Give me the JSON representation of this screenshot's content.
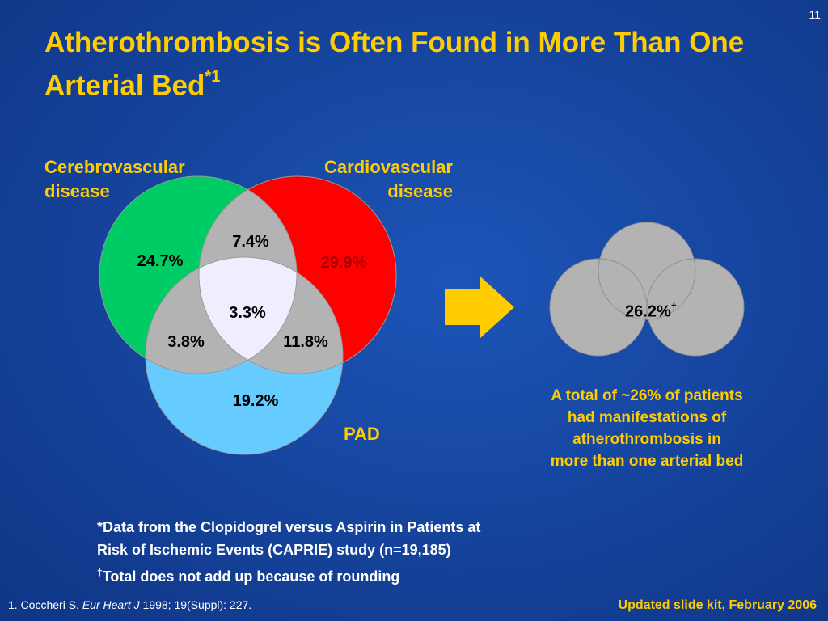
{
  "slide": {
    "number": "11",
    "title_main": "Atherothrombosis is Often Found in More Than One Arterial Bed",
    "title_sup": "*1"
  },
  "venn": {
    "cerebro_label_line1": "Cerebrovascular",
    "cerebro_label_line2": "disease",
    "cardio_label_line1": "Cardiovascular",
    "cardio_label_line2": "disease",
    "pad_label": "PAD",
    "values": {
      "cerebro_only": "24.7%",
      "cardio_only": "29.9%",
      "pad_only": "19.2%",
      "cerebro_cardio": "7.4%",
      "cerebro_pad": "3.8%",
      "cardio_pad": "11.8%",
      "all_three": "3.3%"
    },
    "colors": {
      "cerebro": "#00cc66",
      "cardio": "#ff0000",
      "pad": "#66ccff",
      "overlap": "#b3b3b3",
      "center": "#eeeeff"
    }
  },
  "summary": {
    "total_value": "26.2%",
    "total_dagger": "†",
    "text_line1": "A total of ~26% of patients",
    "text_line2": "had manifestations of",
    "text_line3": "atherothrombosis in",
    "text_line4": "more than one arterial bed",
    "arrow_color": "#ffcc00"
  },
  "footnotes": {
    "line1": "*Data from the Clopidogrel versus Aspirin in Patients at",
    "line2": "Risk of Ischemic Events (CAPRIE) study (n=19,185)",
    "line3_dagger": "†",
    "line3": "Total does not add up because of rounding"
  },
  "reference": {
    "prefix": "1. Coccheri S. ",
    "journal": "Eur Heart J",
    "details": " 1998; 19(Suppl): 227."
  },
  "kit_note": "Updated slide kit, February 2006"
}
